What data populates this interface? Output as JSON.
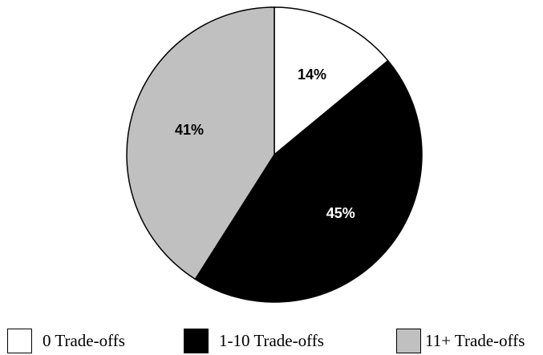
{
  "chart_data": {
    "type": "pie",
    "title": "",
    "start_angle_deg": 0,
    "direction": "clockwise",
    "slices": [
      {
        "label": "0 Trade-offs",
        "value": 14,
        "display": "14%",
        "color": "#ffffff",
        "label_color": "#000000"
      },
      {
        "label": "1-10 Trade-offs",
        "value": 45,
        "display": "45%",
        "color": "#000000",
        "label_color": "#ffffff"
      },
      {
        "label": "11+ Trade-offs",
        "value": 41,
        "display": "41%",
        "color": "#c0c0c0",
        "label_color": "#000000"
      }
    ],
    "legend_position": "bottom"
  }
}
